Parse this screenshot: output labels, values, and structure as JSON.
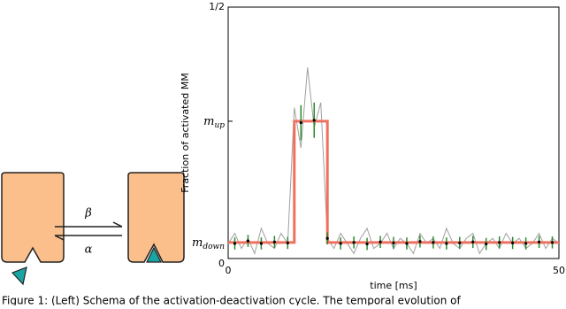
{
  "schema": {
    "forward_rate": "β",
    "backward_rate": "α"
  },
  "chart_data": {
    "type": "line",
    "ylabel": "Fraction of activated MM",
    "xlabel": "time [ms]",
    "xlim": [
      0,
      50
    ],
    "ylim": [
      0,
      0.5
    ],
    "xticks": [
      0,
      50
    ],
    "yticks": [
      0,
      {
        "value": 0.032,
        "label": "m",
        "sub": "down"
      },
      {
        "value": 0.273,
        "label": "m",
        "sub": "up"
      },
      {
        "value": 0.5,
        "label": "1/2"
      }
    ],
    "series": [
      {
        "color": "#a0a0a0",
        "x": [
          0,
          1,
          2,
          3,
          4,
          5,
          6,
          7,
          8,
          9,
          10,
          11,
          12,
          13,
          14,
          15,
          16,
          17,
          18,
          19,
          20,
          21,
          22,
          23,
          24,
          25,
          26,
          27,
          28,
          29,
          30,
          31,
          32,
          33,
          34,
          35,
          36,
          37,
          38,
          39,
          40,
          41,
          42,
          43,
          44,
          45,
          46,
          47,
          48,
          49,
          50
        ],
        "values": [
          0.03,
          0.05,
          0.02,
          0.04,
          0.01,
          0.06,
          0.03,
          0.02,
          0.05,
          0.03,
          0.3,
          0.22,
          0.38,
          0.26,
          0.31,
          0.04,
          0.02,
          0.05,
          0.03,
          0.01,
          0.04,
          0.06,
          0.02,
          0.03,
          0.05,
          0.02,
          0.04,
          0.03,
          0.01,
          0.05,
          0.03,
          0.04,
          0.02,
          0.06,
          0.03,
          0.02,
          0.04,
          0.05,
          0.01,
          0.03,
          0.04,
          0.02,
          0.05,
          0.03,
          0.04,
          0.02,
          0.03,
          0.05,
          0.02,
          0.04,
          0.03
        ]
      },
      {
        "color": "#f07060",
        "x": [
          0,
          10,
          10,
          15,
          15,
          50
        ],
        "values": [
          0.032,
          0.032,
          0.273,
          0.273,
          0.032,
          0.032
        ]
      }
    ],
    "points": {
      "color": "#000000",
      "error_color": "#2a8a2a",
      "x": [
        1,
        3,
        5,
        7,
        9,
        11,
        13,
        15,
        17,
        19,
        21,
        23,
        25,
        27,
        29,
        31,
        33,
        35,
        37,
        39,
        41,
        43,
        45,
        47,
        49
      ],
      "values": [
        0.03,
        0.035,
        0.03,
        0.033,
        0.031,
        0.27,
        0.275,
        0.04,
        0.03,
        0.032,
        0.029,
        0.033,
        0.031,
        0.03,
        0.034,
        0.032,
        0.03,
        0.031,
        0.033,
        0.029,
        0.032,
        0.031,
        0.03,
        0.033,
        0.032
      ],
      "errors": [
        0.012,
        0.012,
        0.012,
        0.012,
        0.012,
        0.035,
        0.035,
        0.012,
        0.012,
        0.012,
        0.012,
        0.012,
        0.012,
        0.012,
        0.012,
        0.012,
        0.012,
        0.012,
        0.012,
        0.012,
        0.012,
        0.012,
        0.012,
        0.012,
        0.012
      ]
    }
  },
  "caption": "Figure 1: (Left) Schema of the activation-deactivation cycle. The temporal evolution of"
}
